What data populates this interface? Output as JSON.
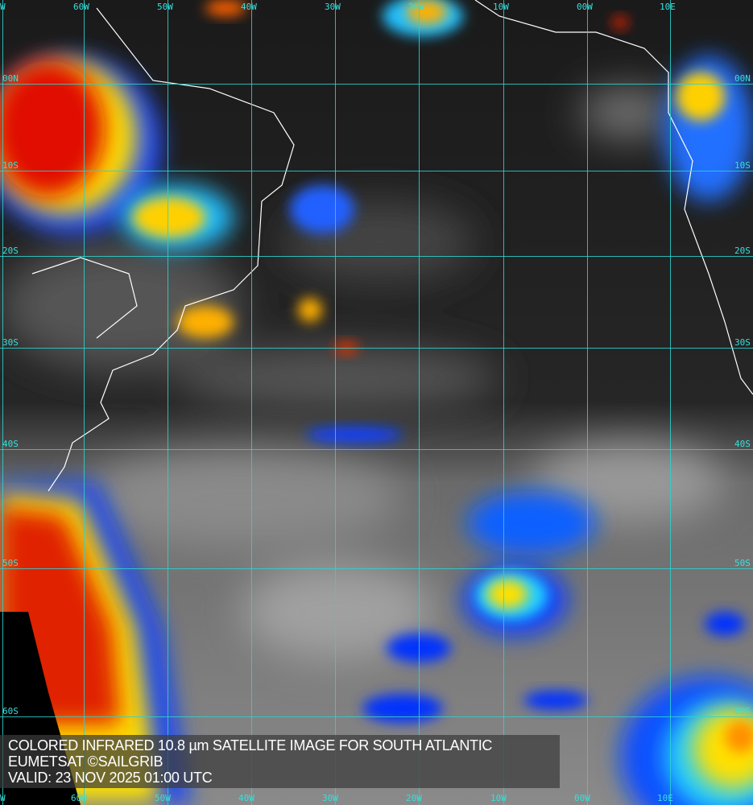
{
  "image": {
    "type": "colored infrared satellite image",
    "region": "South Atlantic"
  },
  "caption": {
    "line1": "COLORED INFRARED 10.8 µm SATELLITE IMAGE FOR SOUTH ATLANTIC",
    "line2": "EUMETSAT ©SAILGRIB",
    "line3": "VALID:  23 NOV 2025 01:00 UTC"
  },
  "grid": {
    "top_labels": [
      "W",
      "60W",
      "50W",
      "40W",
      "30W",
      "20W",
      "10W",
      "00W",
      "10E"
    ],
    "bottom_labels": [
      "W",
      "60W",
      "50W",
      "40W",
      "30W",
      "20W",
      "10W",
      "00W",
      "10E"
    ],
    "left_labels": [
      "00N",
      "10S",
      "20S",
      "30S",
      "40S",
      "50S",
      "60S"
    ],
    "right_labels": [
      "00N",
      "10S",
      "20S",
      "30S",
      "40S",
      "50S",
      "60S"
    ],
    "line_color": "#2ad4d0"
  },
  "colors": {
    "cold_cloud_tops": "#d40000",
    "very_cold": "#ff3000",
    "cold": "#ffe000",
    "mid": "#20d0ff",
    "warm_cloud": "#0030ff",
    "ocean": "#1c1c1c",
    "coastline": "#ffffff"
  }
}
